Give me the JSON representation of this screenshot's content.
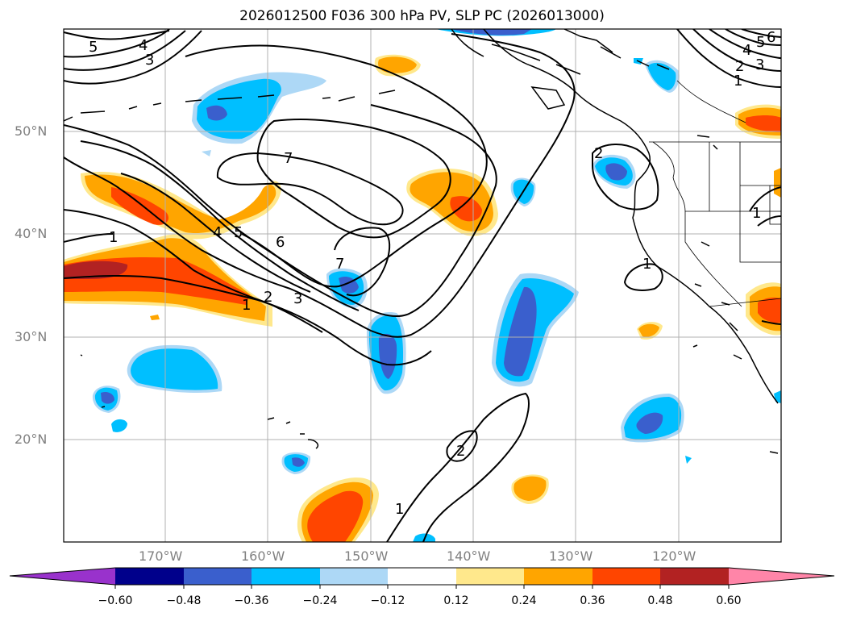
{
  "title": "2026012500 F036 300 hPa PV, SLP PC (2026013000)",
  "lat_labels": [
    "50°N",
    "40°N",
    "30°N",
    "20°N"
  ],
  "lon_labels": [
    "170°W",
    "160°W",
    "150°W",
    "140°W",
    "130°W",
    "120°W"
  ],
  "contour_labels": [
    "5",
    "4",
    "3",
    "7",
    "1",
    "4",
    "5",
    "6",
    "7",
    "1",
    "2",
    "3",
    "2",
    "1",
    "2",
    "1",
    "4",
    "5",
    "6",
    "2",
    "3",
    "1",
    "1"
  ],
  "colorbar": {
    "ticks": [
      "−0.60",
      "−0.48",
      "−0.36",
      "−0.24",
      "−0.12",
      "0.12",
      "0.24",
      "0.36",
      "0.48",
      "0.60"
    ],
    "colors": [
      "#9932cc",
      "#00008b",
      "#3a5fcd",
      "#00bfff",
      "#add8f6",
      "#ffffff",
      "#ffe88c",
      "#ffa500",
      "#ff4500",
      "#b22222",
      "#ff85a8"
    ]
  }
}
